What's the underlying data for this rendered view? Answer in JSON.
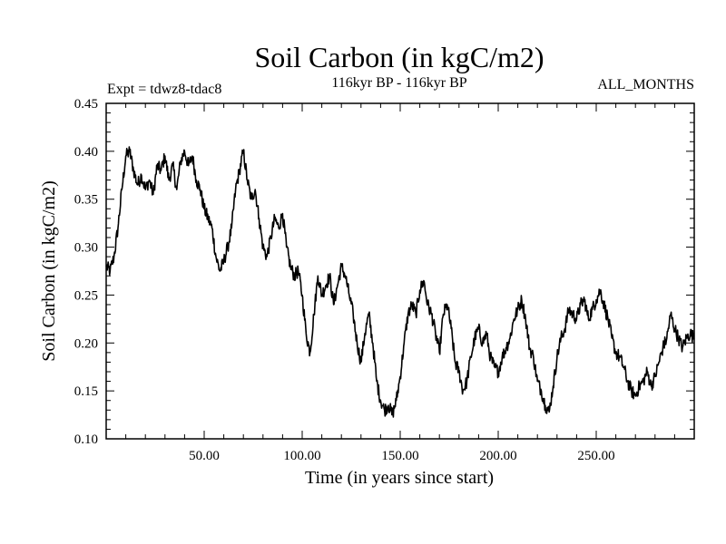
{
  "chart_data": {
    "type": "line",
    "title": "Soil Carbon (in kgC/m2)",
    "subtitle_left": "Expt = tdwz8-tdac8",
    "subtitle_center": "116kyr BP - 116kyr BP",
    "subtitle_right": "ALL_MONTHS",
    "xlabel": "Time (in years since start)",
    "ylabel": "Soil Carbon (in kgC/m2)",
    "xlim": [
      0,
      300
    ],
    "ylim": [
      0.1,
      0.45
    ],
    "x_ticks": [
      50,
      100,
      150,
      200,
      250
    ],
    "x_tick_labels": [
      "50.00",
      "100.00",
      "150.00",
      "200.00",
      "250.00"
    ],
    "y_ticks": [
      0.1,
      0.15,
      0.2,
      0.25,
      0.3,
      0.35,
      0.4,
      0.45
    ],
    "y_tick_labels": [
      "0.10",
      "0.15",
      "0.20",
      "0.25",
      "0.30",
      "0.35",
      "0.40",
      "0.45"
    ],
    "line_color": "#000000",
    "series": [
      {
        "name": "Soil Carbon",
        "x": [
          0,
          2,
          4,
          6,
          8,
          10,
          12,
          14,
          16,
          18,
          20,
          22,
          24,
          26,
          28,
          30,
          32,
          34,
          36,
          38,
          40,
          42,
          44,
          46,
          48,
          50,
          52,
          54,
          56,
          58,
          60,
          62,
          64,
          66,
          68,
          70,
          72,
          74,
          76,
          78,
          80,
          82,
          84,
          86,
          88,
          90,
          92,
          94,
          96,
          98,
          100,
          102,
          104,
          106,
          108,
          110,
          112,
          114,
          116,
          118,
          120,
          122,
          124,
          126,
          128,
          130,
          132,
          134,
          136,
          138,
          140,
          142,
          144,
          146,
          148,
          150,
          152,
          154,
          156,
          158,
          160,
          162,
          164,
          166,
          168,
          170,
          172,
          174,
          176,
          178,
          180,
          182,
          184,
          186,
          188,
          190,
          192,
          194,
          196,
          198,
          200,
          202,
          204,
          206,
          208,
          210,
          212,
          214,
          216,
          218,
          220,
          222,
          224,
          226,
          228,
          230,
          232,
          234,
          236,
          238,
          240,
          242,
          244,
          246,
          248,
          250,
          252,
          254,
          256,
          258,
          260,
          262,
          264,
          266,
          268,
          270,
          272,
          274,
          276,
          278,
          280,
          282,
          284,
          286,
          288,
          290,
          292,
          294,
          296,
          298,
          300
        ],
        "values": [
          0.28,
          0.275,
          0.29,
          0.32,
          0.36,
          0.395,
          0.4,
          0.38,
          0.365,
          0.375,
          0.36,
          0.37,
          0.355,
          0.385,
          0.38,
          0.395,
          0.37,
          0.385,
          0.36,
          0.39,
          0.4,
          0.385,
          0.395,
          0.37,
          0.36,
          0.34,
          0.33,
          0.32,
          0.29,
          0.275,
          0.285,
          0.3,
          0.32,
          0.36,
          0.38,
          0.4,
          0.37,
          0.35,
          0.36,
          0.33,
          0.3,
          0.29,
          0.31,
          0.33,
          0.32,
          0.335,
          0.3,
          0.28,
          0.27,
          0.275,
          0.25,
          0.21,
          0.19,
          0.23,
          0.27,
          0.25,
          0.26,
          0.27,
          0.24,
          0.26,
          0.28,
          0.27,
          0.25,
          0.23,
          0.2,
          0.18,
          0.21,
          0.23,
          0.2,
          0.16,
          0.14,
          0.13,
          0.135,
          0.125,
          0.14,
          0.165,
          0.2,
          0.23,
          0.24,
          0.23,
          0.255,
          0.265,
          0.24,
          0.23,
          0.21,
          0.19,
          0.23,
          0.24,
          0.215,
          0.18,
          0.17,
          0.15,
          0.16,
          0.185,
          0.205,
          0.215,
          0.2,
          0.21,
          0.185,
          0.175,
          0.17,
          0.185,
          0.195,
          0.205,
          0.225,
          0.235,
          0.245,
          0.225,
          0.195,
          0.185,
          0.16,
          0.15,
          0.135,
          0.128,
          0.155,
          0.185,
          0.205,
          0.215,
          0.235,
          0.23,
          0.225,
          0.24,
          0.245,
          0.225,
          0.235,
          0.245,
          0.255,
          0.24,
          0.225,
          0.205,
          0.19,
          0.185,
          0.175,
          0.16,
          0.15,
          0.145,
          0.155,
          0.16,
          0.17,
          0.155,
          0.165,
          0.18,
          0.195,
          0.205,
          0.23,
          0.215,
          0.205,
          0.195,
          0.205,
          0.21,
          0.205
        ]
      }
    ]
  }
}
